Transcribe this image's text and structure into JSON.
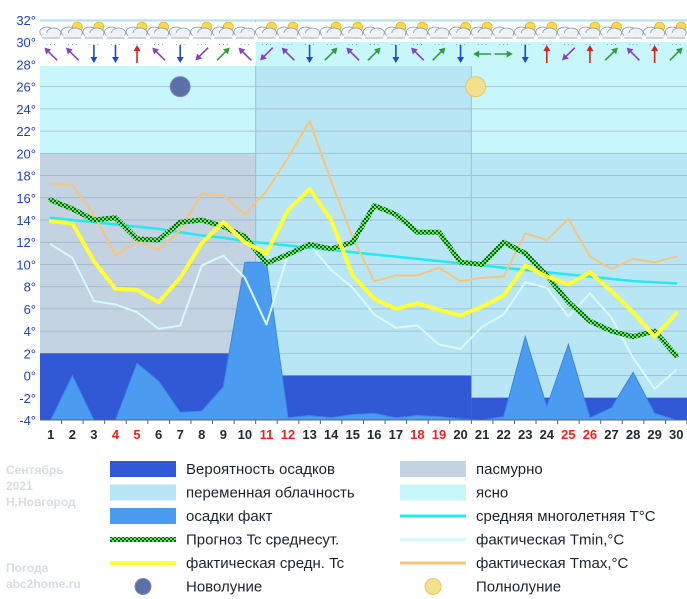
{
  "colors": {
    "chance_precip": "#3159d6",
    "variable_cloud": "#b9e6f4",
    "overcast": "#c3d3e2",
    "clear": "#c7f7fb",
    "precip_fact": "#4b9cf0",
    "forecast_mean": "#119911",
    "actual_mean": "#ffff33",
    "norm_mean": "#22eaf0",
    "tmin": "#d8fafb",
    "tmax": "#f6c57a",
    "axis_text": "#1f3fd0",
    "weekend": "#ff1a1a"
  },
  "side_text": {
    "month": "Сентябрь",
    "year": "2021",
    "city": "Н.Новгород",
    "site_label": "Погода",
    "site": "abc2home.ru"
  },
  "legend": {
    "chance_precip": "Вероятность осадков",
    "overcast": "пасмурно",
    "variable_cloud": "переменная облачность",
    "clear": "ясно",
    "precip_fact": "осадки факт",
    "norm_mean": "средняя многолетняя T°C",
    "forecast_mean": "Прогноз Tc среднесут.",
    "tmin": "фактическая Tmin,°C",
    "actual_mean": "фактическая средн. Tc",
    "tmax": "фактическая Tmax,°C",
    "new_moon": "Новолуние",
    "full_moon": "Полнолуние"
  },
  "chart_data": {
    "type": "line",
    "ylim": [
      -4,
      32
    ],
    "ytick_labels": [
      "-4",
      "-2",
      "0",
      "2",
      "4",
      "6",
      "8",
      "10",
      "12",
      "14",
      "16",
      "18",
      "20",
      "22",
      "24",
      "26",
      "28",
      "30",
      "32"
    ],
    "ytick_suffix": "°",
    "x": [
      1,
      2,
      3,
      4,
      5,
      6,
      7,
      8,
      9,
      10,
      11,
      12,
      13,
      14,
      15,
      16,
      17,
      18,
      19,
      20,
      21,
      22,
      23,
      24,
      25,
      26,
      27,
      28,
      29,
      30
    ],
    "weekend_days": [
      4,
      5,
      11,
      12,
      18,
      19,
      25,
      26
    ],
    "series": [
      {
        "key": "forecast_mean",
        "name": "Прогноз Tc среднесут.",
        "values": [
          15.8,
          15.0,
          14.0,
          14.2,
          12.3,
          12.2,
          13.8,
          14.0,
          13.4,
          12.5,
          10.1,
          10.9,
          11.8,
          11.4,
          12.0,
          15.3,
          14.5,
          12.9,
          12.9,
          10.2,
          10.0,
          12.0,
          11.0,
          9.0,
          6.6,
          4.9,
          4.0,
          3.5,
          4.0,
          1.8
        ]
      },
      {
        "key": "actual_mean",
        "name": "фактическая средн. Tc",
        "values": [
          13.9,
          13.7,
          10.3,
          7.8,
          7.7,
          6.6,
          8.8,
          11.9,
          13.8,
          12.0,
          11.0,
          14.9,
          16.8,
          14.0,
          9.0,
          6.9,
          6.0,
          6.5,
          5.9,
          5.4,
          6.2,
          7.2,
          9.9,
          8.9,
          8.2,
          9.3,
          7.6,
          5.7,
          3.5,
          5.6
        ]
      },
      {
        "key": "tmin",
        "name": "фактическая Tmin,°C",
        "values": [
          11.8,
          10.6,
          6.7,
          6.4,
          5.7,
          4.2,
          4.5,
          9.9,
          10.8,
          8.8,
          4.6,
          10.9,
          11.8,
          9.5,
          7.9,
          5.5,
          4.3,
          4.5,
          2.8,
          2.4,
          4.4,
          5.5,
          8.4,
          7.9,
          5.3,
          7.4,
          5.2,
          1.6,
          -1.2,
          0.5
        ]
      },
      {
        "key": "tmax",
        "name": "фактическая Tmax,°C",
        "values": [
          17.3,
          17.1,
          14.5,
          10.8,
          12.1,
          11.3,
          13.1,
          16.4,
          16.2,
          14.5,
          16.6,
          19.6,
          22.9,
          17.5,
          12.4,
          8.5,
          9.0,
          9.0,
          9.7,
          8.5,
          8.8,
          8.9,
          12.8,
          12.2,
          14.1,
          10.7,
          9.6,
          10.5,
          10.2,
          10.7
        ]
      },
      {
        "key": "norm_mean",
        "name": "средняя многолетняя T°C",
        "values": [
          14.2,
          14.0,
          13.8,
          13.6,
          13.4,
          13.2,
          12.9,
          12.6,
          12.4,
          12.1,
          11.9,
          11.7,
          11.5,
          11.3,
          11.1,
          10.9,
          10.7,
          10.5,
          10.3,
          10.1,
          9.9,
          9.7,
          9.5,
          9.3,
          9.1,
          8.9,
          8.7,
          8.5,
          8.4,
          8.3
        ]
      },
      {
        "key": "precip_fact",
        "name": "осадки факт",
        "values": [
          -4.0,
          0.0,
          -4.0,
          -4.0,
          1.1,
          -0.5,
          -3.3,
          -3.2,
          -1.0,
          10.2,
          10.2,
          -3.8,
          -3.6,
          -3.8,
          -3.5,
          -3.4,
          -3.8,
          -3.6,
          -3.7,
          -3.9,
          -4.0,
          -3.7,
          3.5,
          -2.8,
          2.8,
          -3.8,
          -2.9,
          0.3,
          -3.4,
          -4.0
        ]
      }
    ],
    "cloud_bands": [
      {
        "from": 1,
        "to": 10,
        "level": 20,
        "kind": "overcast"
      },
      {
        "from": 11,
        "to": 20,
        "level": 18,
        "kind": "overcast"
      },
      {
        "from": 21,
        "to": 30,
        "level": 18,
        "kind": "overcast"
      },
      {
        "from": 11,
        "to": 20,
        "level": 28.3,
        "kind": "variable_cloud"
      },
      {
        "from": 21,
        "to": 30,
        "level": 20,
        "kind": "variable_cloud"
      }
    ],
    "precip_chance_bands": [
      {
        "from": 1,
        "to": 10,
        "level": 2
      },
      {
        "from": 11,
        "to": 20,
        "level": 0
      },
      {
        "from": 21,
        "to": 30,
        "level": -2
      }
    ],
    "moon_phases": [
      {
        "phase": "new_moon",
        "day": 7
      },
      {
        "phase": "full_moon",
        "day": 20.7
      }
    ],
    "wind_row": {
      "directions": [
        "NW",
        "NW",
        "S",
        "S",
        "N",
        "NW",
        "S",
        "SW",
        "NE",
        "NW",
        "SW",
        "NW",
        "S",
        "NE",
        "NW",
        "NE",
        "S",
        "NW",
        "NE",
        "S",
        "W",
        "E",
        "S",
        "N",
        "SW",
        "N",
        "NE",
        "NW",
        "N",
        "NE"
      ]
    }
  }
}
